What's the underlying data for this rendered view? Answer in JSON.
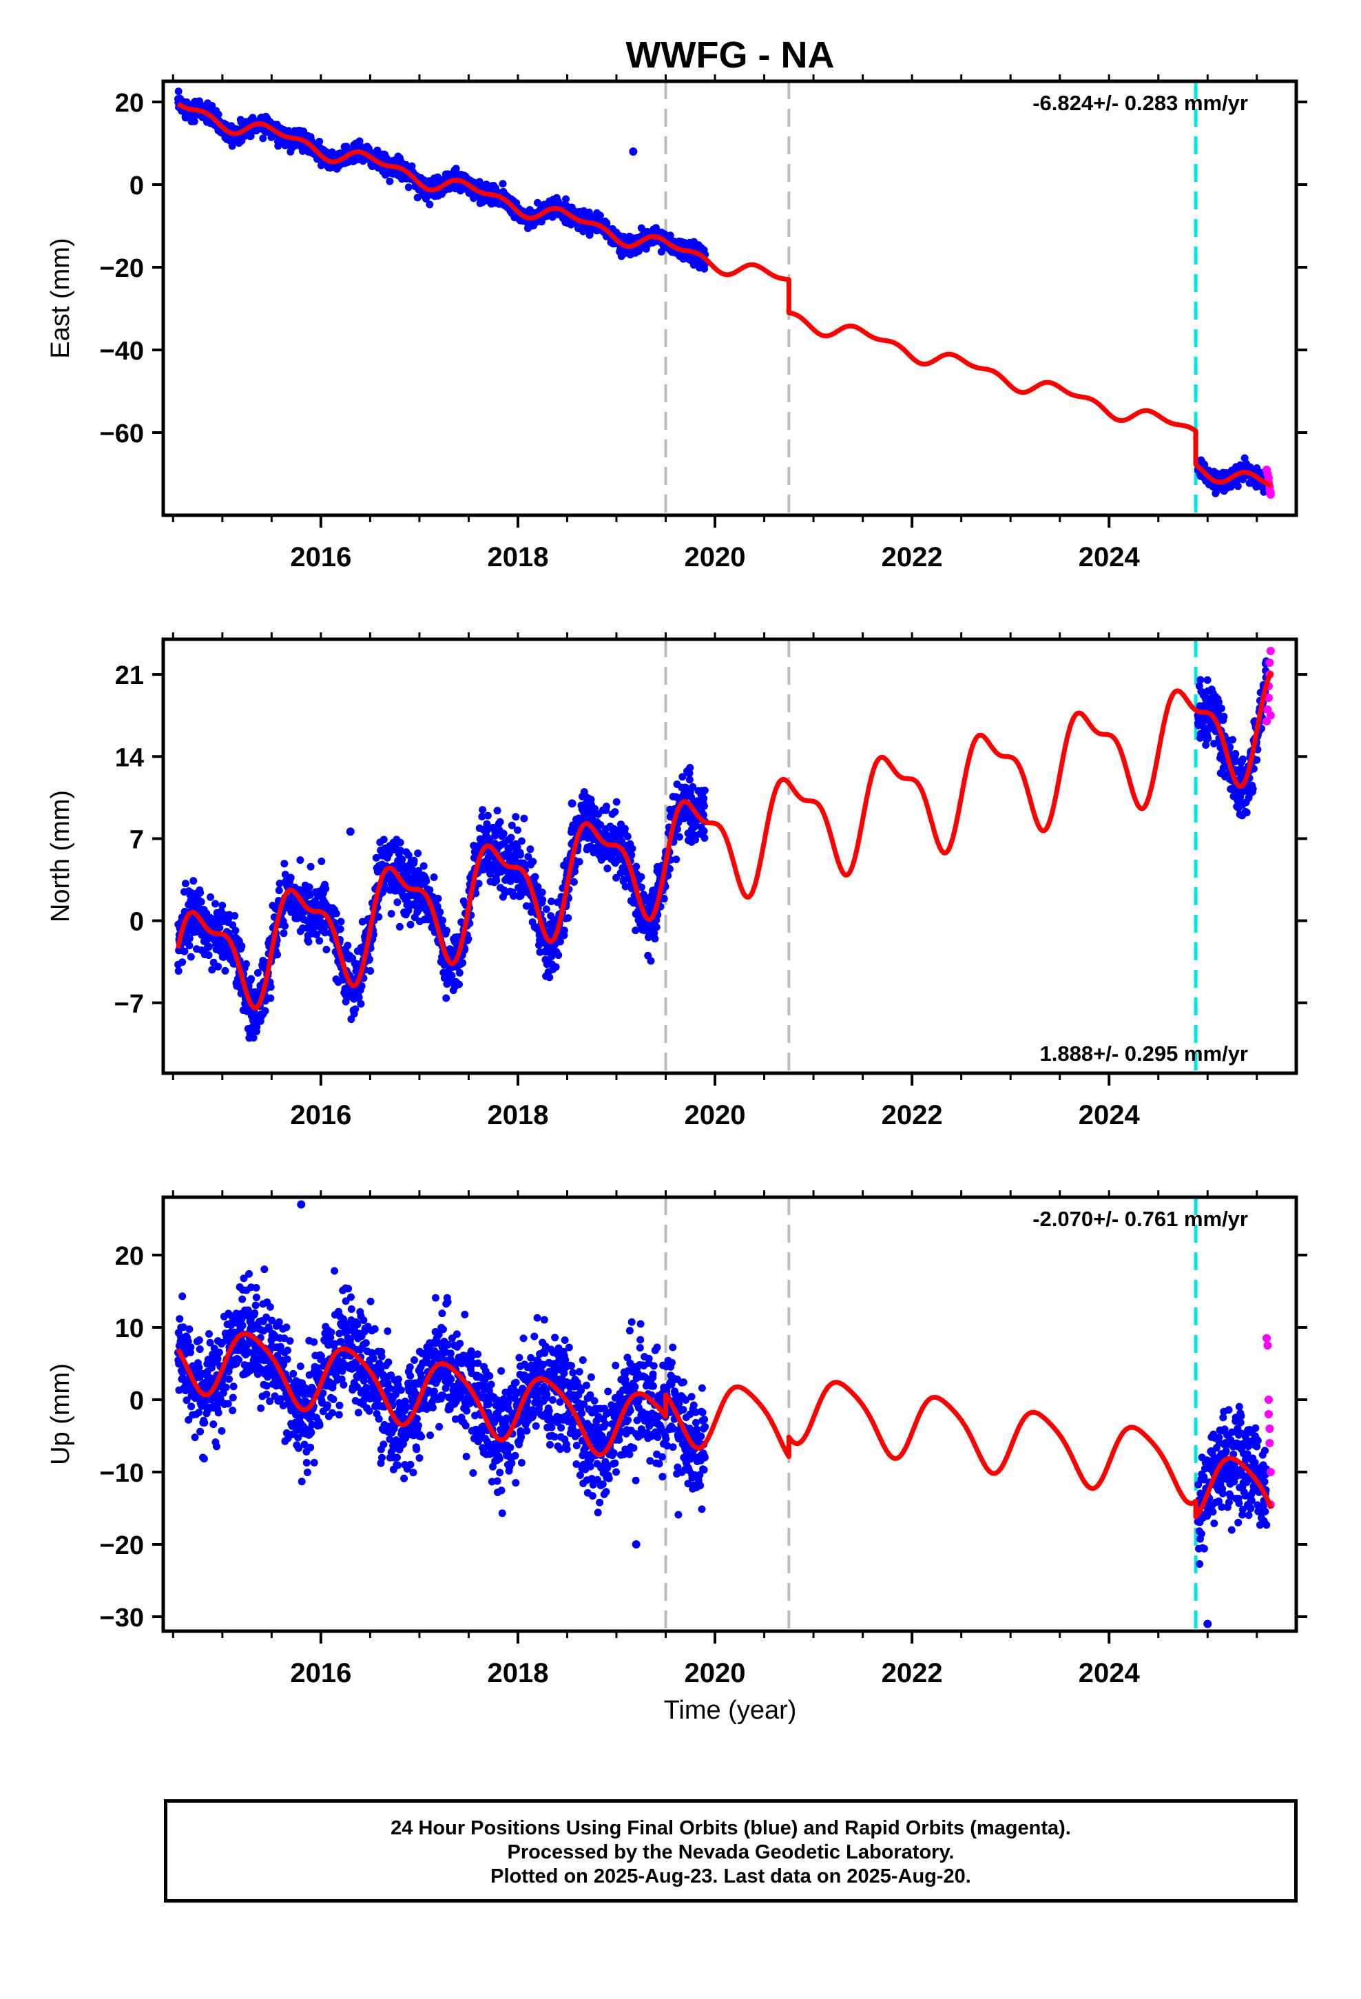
{
  "title": "WWFG - NA",
  "xlabel": "Time (year)",
  "colors": {
    "final_orbits": "#0000ff",
    "rapid_orbits": "#ff00ff",
    "model": "#ff0000",
    "gray_event": "#bbbbbb",
    "cyan_event": "#00e5e5"
  },
  "footer": {
    "line1": "24 Hour Positions Using Final Orbits (blue) and Rapid Orbits (magenta).",
    "line2": "Processed by the Nevada Geodetic Laboratory.",
    "line3": "Plotted on 2025-Aug-23. Last data on 2025-Aug-20."
  },
  "chart_data": [
    {
      "type": "scatter",
      "component": "east",
      "ylabel": "East (mm)",
      "rate_label": "-6.824+/- 0.283 mm/yr",
      "rate_position": "top-right",
      "xlim": [
        2014.4,
        2025.9
      ],
      "ylim": [
        -80,
        25
      ],
      "xticks": [
        2016,
        2018,
        2020,
        2022,
        2024
      ],
      "yticks": [
        20,
        0,
        -20,
        -40,
        -60
      ],
      "event_lines_gray": [
        2019.5,
        2020.75
      ],
      "event_lines_cyan": [
        2024.88
      ],
      "model_segments": [
        {
          "x0": 2014.55,
          "x1": 2020.75,
          "intercept_2014_5": 19.0,
          "rate": -6.824,
          "amp_annual": 1.6,
          "amp_semiannual": 1.0,
          "phase": 0.3
        },
        {
          "x0": 2020.75,
          "x1": 2024.88,
          "intercept_2014_5": 11.0,
          "rate": -6.824,
          "amp_annual": 1.6,
          "amp_semiannual": 1.0,
          "phase": 0.3
        },
        {
          "x0": 2024.88,
          "x1": 2025.65,
          "intercept_2014_5": 2.9,
          "rate": -6.824,
          "amp_annual": 1.6,
          "amp_semiannual": 1.0,
          "phase": 0.3
        }
      ],
      "final_orbit_spans": [
        [
          2014.55,
          2019.9
        ],
        [
          2024.9,
          2025.6
        ]
      ],
      "final_orbit_scatter_mm": 1.1,
      "outliers": [
        {
          "x": 2019.17,
          "y": 8
        }
      ],
      "rapid_orbit_points": [
        {
          "x": 2025.6,
          "y": -69
        },
        {
          "x": 2025.61,
          "y": -70
        },
        {
          "x": 2025.62,
          "y": -71
        },
        {
          "x": 2025.62,
          "y": -72
        },
        {
          "x": 2025.63,
          "y": -73
        },
        {
          "x": 2025.63,
          "y": -74
        },
        {
          "x": 2025.64,
          "y": -75
        },
        {
          "x": 2025.64,
          "y": -74.5
        }
      ]
    },
    {
      "type": "scatter",
      "component": "north",
      "ylabel": "North (mm)",
      "rate_label": "1.888+/- 0.295 mm/yr",
      "rate_position": "bottom-right",
      "xlim": [
        2014.4,
        2025.9
      ],
      "ylim": [
        -13,
        24
      ],
      "xticks": [
        2016,
        2018,
        2020,
        2022,
        2024
      ],
      "yticks": [
        21,
        14,
        7,
        0,
        -7
      ],
      "event_lines_gray": [
        2019.5,
        2020.75
      ],
      "event_lines_cyan": [
        2024.88
      ],
      "model_segments": [
        {
          "x0": 2014.55,
          "x1": 2024.88,
          "intercept_2014_5": -3.6,
          "rate": 1.888,
          "amp_annual": 4.0,
          "amp_semiannual": 1.6,
          "phase": 0.55
        },
        {
          "x0": 2024.88,
          "x1": 2025.65,
          "intercept_2014_5": -3.6,
          "rate": 1.888,
          "amp_annual": 4.0,
          "amp_semiannual": 1.6,
          "phase": 0.55
        }
      ],
      "final_orbit_spans": [
        [
          2014.55,
          2019.9
        ],
        [
          2024.9,
          2025.6
        ]
      ],
      "final_orbit_scatter_mm": 1.3,
      "outliers": [
        {
          "x": 2016.3,
          "y": 7.6
        },
        {
          "x": 2018.55,
          "y": 10
        },
        {
          "x": 2025.35,
          "y": 9
        }
      ],
      "rapid_orbit_points": [
        {
          "x": 2025.6,
          "y": 17
        },
        {
          "x": 2025.61,
          "y": 18
        },
        {
          "x": 2025.62,
          "y": 19
        },
        {
          "x": 2025.62,
          "y": 20
        },
        {
          "x": 2025.63,
          "y": 21
        },
        {
          "x": 2025.63,
          "y": 22
        },
        {
          "x": 2025.64,
          "y": 23
        },
        {
          "x": 2025.64,
          "y": 17.5
        }
      ]
    },
    {
      "type": "scatter",
      "component": "up",
      "ylabel": "Up (mm)",
      "rate_label": "-2.070+/- 0.761 mm/yr",
      "rate_position": "top-right",
      "xlim": [
        2014.4,
        2025.9
      ],
      "ylim": [
        -32,
        28
      ],
      "xticks": [
        2016,
        2018,
        2020,
        2022,
        2024
      ],
      "yticks": [
        20,
        10,
        0,
        -10,
        -20,
        -30
      ],
      "event_lines_gray": [
        2019.5,
        2020.75
      ],
      "event_lines_cyan": [
        2024.88
      ],
      "model_segments": [
        {
          "x0": 2014.55,
          "x1": 2019.5,
          "intercept_2014_5": 6.5,
          "rate": -2.07,
          "amp_annual": 4.5,
          "amp_semiannual": 0.8,
          "phase": 0.05
        },
        {
          "x0": 2019.5,
          "x1": 2020.75,
          "intercept_2014_5": 9.5,
          "rate": -2.07,
          "amp_annual": 4.5,
          "amp_semiannual": 0.8,
          "phase": 0.05
        },
        {
          "x0": 2020.75,
          "x1": 2024.88,
          "intercept_2014_5": 12.2,
          "rate": -2.07,
          "amp_annual": 4.5,
          "amp_semiannual": 0.8,
          "phase": 0.05
        },
        {
          "x0": 2024.88,
          "x1": 2025.65,
          "intercept_2014_5": 10.0,
          "rate": -2.07,
          "amp_annual": 4.5,
          "amp_semiannual": 0.8,
          "phase": 0.05
        }
      ],
      "final_orbit_spans": [
        [
          2014.55,
          2019.9
        ],
        [
          2024.9,
          2025.6
        ]
      ],
      "final_orbit_scatter_mm": 3.6,
      "outliers": [
        {
          "x": 2015.8,
          "y": 27
        },
        {
          "x": 2019.2,
          "y": -20
        },
        {
          "x": 2025.0,
          "y": -31
        }
      ],
      "rapid_orbit_points": [
        {
          "x": 2025.6,
          "y": 8.5
        },
        {
          "x": 2025.61,
          "y": 7.5
        },
        {
          "x": 2025.62,
          "y": 0
        },
        {
          "x": 2025.62,
          "y": -2
        },
        {
          "x": 2025.63,
          "y": -4
        },
        {
          "x": 2025.63,
          "y": -6
        },
        {
          "x": 2025.64,
          "y": -10
        },
        {
          "x": 2025.64,
          "y": -14.5
        }
      ]
    }
  ]
}
